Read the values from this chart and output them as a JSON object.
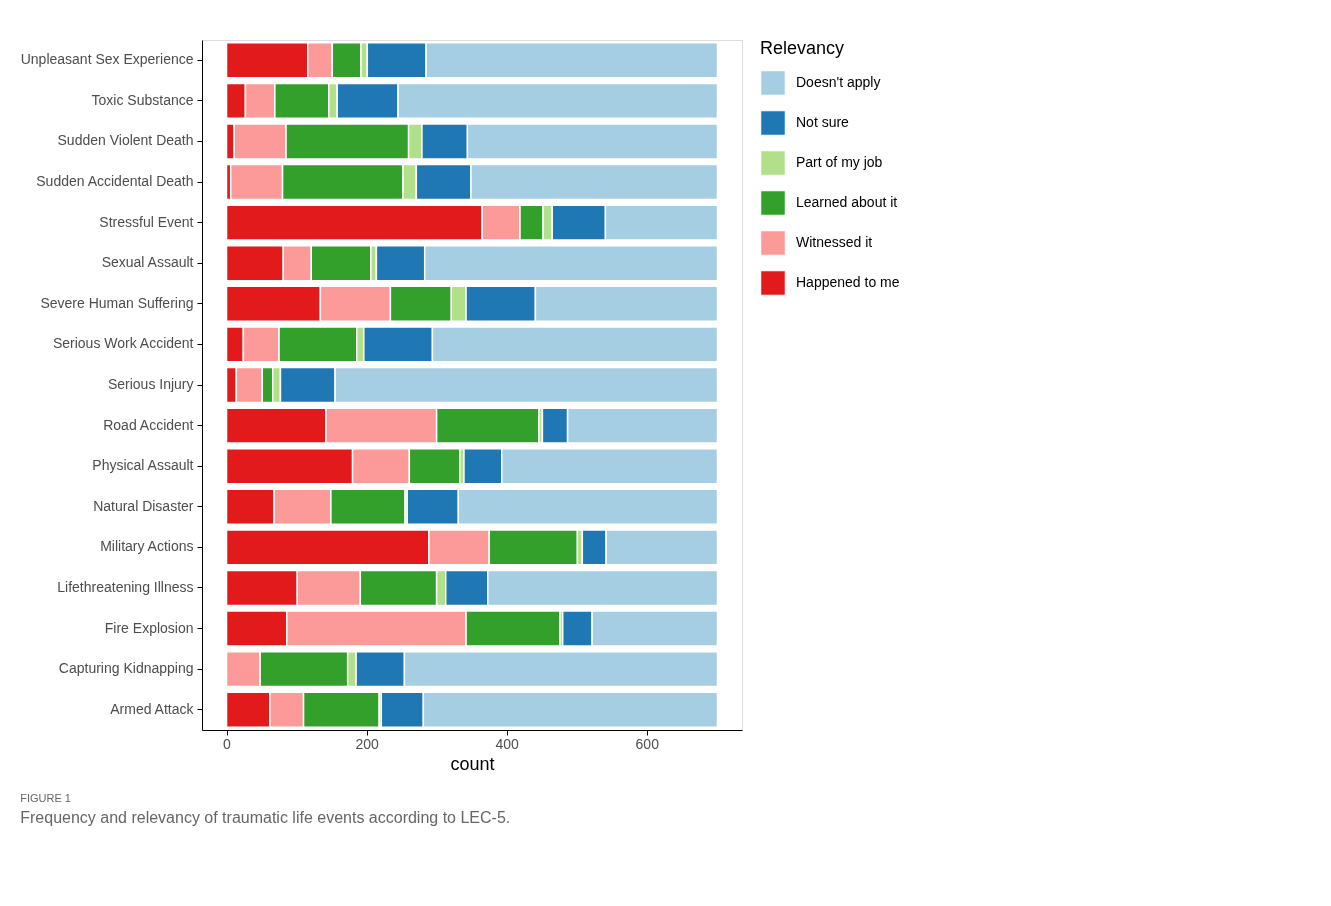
{
  "chart_data": {
    "type": "bar",
    "orientation": "horizontal",
    "stacked": true,
    "xlabel": "count",
    "legend_title": "Relevancy",
    "legend": "right",
    "grid": false,
    "annotations": [
      "FIGURE 1",
      "Frequency and relevancy of traumatic life events according to LEC-5."
    ],
    "xlim": [
      -35,
      736
    ],
    "xticks": [
      0,
      200,
      400,
      600
    ],
    "categories": [
      "Unpleasant Sex Experience",
      "Toxic Substance",
      "Sudden Violent Death",
      "Sudden Accidental Death",
      "Stressful Event",
      "Sexual Assault",
      "Severe Human Suffering",
      "Serious Work Accident",
      "Serious Injury",
      "Road Accident",
      "Physical Assault",
      "Natural Disaster",
      "Military Actions",
      "Lifethreatening Illness",
      "Fire Explosion",
      "Capturing Kidnapping",
      "Armed Attack"
    ],
    "series": [
      {
        "name": "Happened to me",
        "color": "#e31a1c",
        "values": [
          116,
          27,
          11,
          6,
          365,
          81,
          134,
          24,
          14,
          142,
          180,
          68,
          289,
          101,
          86,
          0,
          62
        ]
      },
      {
        "name": "Witnessed it",
        "color": "#fb9a99",
        "values": [
          35,
          42,
          74,
          74,
          54,
          40,
          100,
          51,
          37,
          158,
          81,
          81,
          86,
          90,
          256,
          48,
          48
        ]
      },
      {
        "name": "Learned about it",
        "color": "#33a02c",
        "values": [
          41,
          77,
          175,
          172,
          33,
          85,
          87,
          111,
          15,
          146,
          72,
          106,
          126,
          109,
          134,
          125,
          108
        ]
      },
      {
        "name": "Part of my job",
        "color": "#b2df8a",
        "values": [
          9,
          12,
          19,
          19,
          13,
          8,
          21,
          10,
          11,
          5,
          6,
          3,
          7,
          13,
          4,
          12,
          3
        ]
      },
      {
        "name": "Not sure",
        "color": "#1f78b4",
        "values": [
          84,
          87,
          65,
          78,
          76,
          69,
          99,
          98,
          78,
          36,
          54,
          73,
          34,
          60,
          42,
          69,
          60
        ]
      },
      {
        "name": "Doesn't apply",
        "color": "#a6cee3",
        "values": [
          416,
          456,
          357,
          352,
          160,
          418,
          260,
          407,
          546,
          214,
          308,
          370,
          159,
          328,
          179,
          447,
          420
        ]
      }
    ]
  }
}
